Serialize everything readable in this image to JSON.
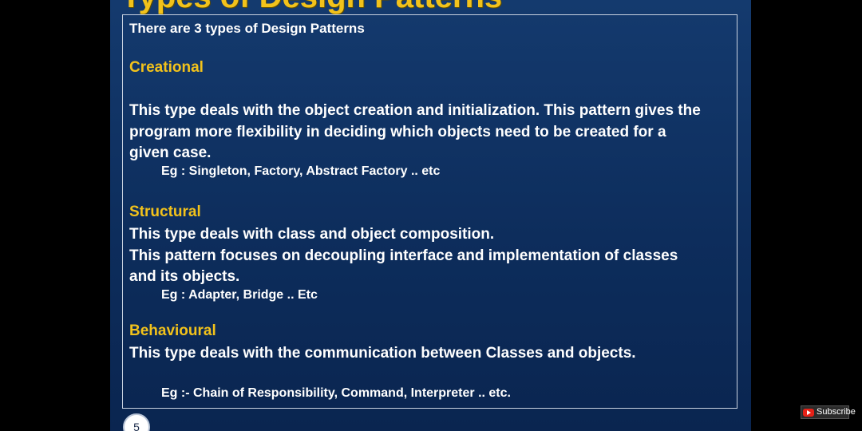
{
  "slide": {
    "title": "Types of Design Patterns",
    "intro": "There are 3 types of Design Patterns",
    "number": "5",
    "sections": [
      {
        "heading": "Creational",
        "body": [
          "This type deals with the object creation and initialization. This pattern gives the",
          "program more flexibility in deciding which objects need to be created for a",
          "given case."
        ],
        "example": "Eg : Singleton, Factory, Abstract Factory .. etc"
      },
      {
        "heading": "Structural",
        "body": [
          "This type deals with class and object composition.",
          "This pattern focuses on decoupling interface and implementation of classes",
          "and its objects."
        ],
        "example": "Eg : Adapter,  Bridge .. Etc"
      },
      {
        "heading": "Behavioural",
        "body": [
          "This type deals with the communication between Classes and objects."
        ],
        "example": "Eg :- Chain of Responsibility, Command, Interpreter .. etc."
      }
    ]
  },
  "overlay": {
    "subscribe_label": "Subscribe",
    "subscribe_icon": "youtube-play-icon"
  },
  "colors": {
    "slide_background": "#0d2d5c",
    "heading_color": "#f2c21b",
    "text_color": "#ffffff",
    "youtube_red": "#e62117"
  }
}
